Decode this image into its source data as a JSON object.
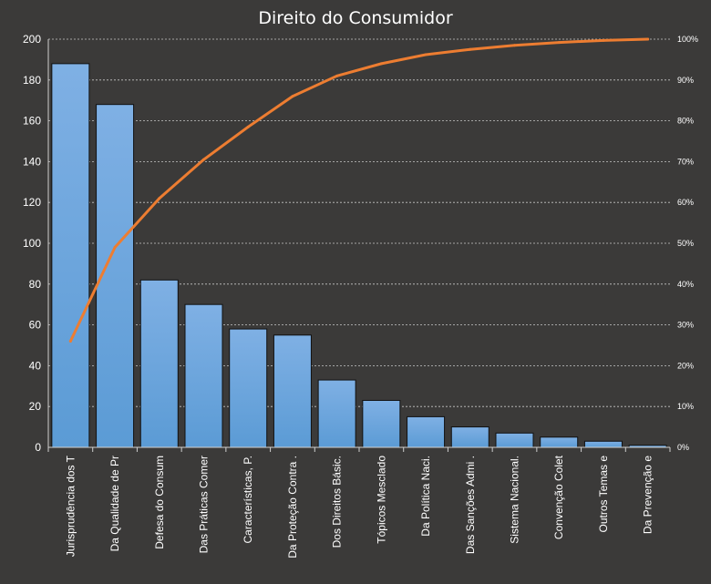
{
  "chart_data": {
    "type": "bar",
    "title": "Direito do Consumidor",
    "categories": [
      "Jurisprudência dos T",
      "Da Qualidade de Pr",
      "Defesa do Consum",
      "Das Práticas Comer",
      "Características, P.",
      "Da Proteção Contra .",
      "Dos Direitos Básic.",
      "Tópicos Mesclado",
      "Da Política Naci.",
      "Das Sanções Admi .",
      "Sistema Nacional.",
      "Convenção Colet",
      "Outros Temas e",
      "Da Prevenção e"
    ],
    "series": [
      {
        "type": "bar",
        "values": [
          188,
          168,
          82,
          70,
          58,
          55,
          33,
          23,
          15,
          10,
          7,
          5,
          3,
          1
        ],
        "color": "#5b9bd5"
      },
      {
        "type": "line",
        "axis": "secondary",
        "values": [
          26,
          49,
          61,
          70.5,
          78.5,
          86,
          91,
          94,
          96.2,
          97.5,
          98.5,
          99.2,
          99.7,
          100
        ],
        "color": "#ed7d31"
      }
    ],
    "ylim": [
      0,
      200
    ],
    "yticks": [
      0,
      20,
      40,
      60,
      80,
      100,
      120,
      140,
      160,
      180,
      200
    ],
    "y2lim": [
      0,
      100
    ],
    "y2ticks": [
      "0%",
      "10%",
      "20%",
      "30%",
      "40%",
      "50%",
      "60%",
      "70%",
      "80%",
      "90%",
      "100%"
    ],
    "grid": true,
    "legend": "none"
  }
}
